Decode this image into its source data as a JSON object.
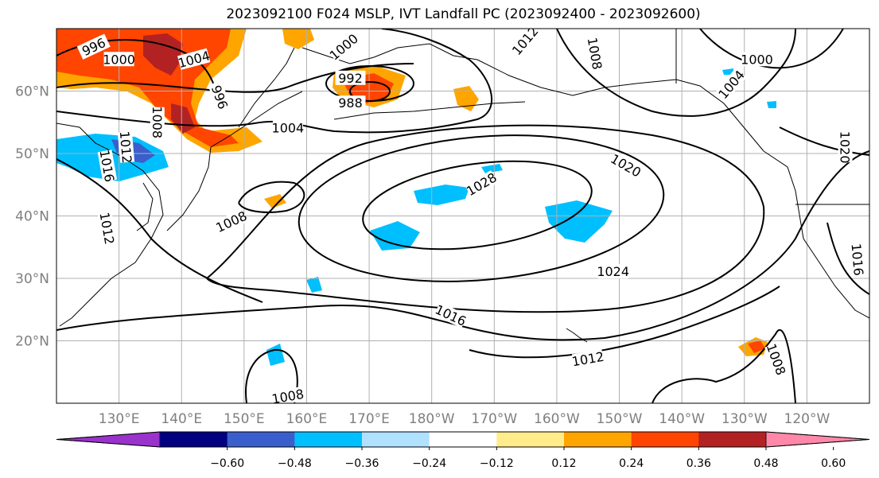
{
  "title": "2023092100 F024 MSLP, IVT Landfall PC (2023092400 - 2023092600)",
  "map": {
    "lon_range": [
      120,
      250
    ],
    "lat_range": [
      10,
      70
    ],
    "lon_ticks": [
      "130°E",
      "140°E",
      "150°E",
      "160°E",
      "170°E",
      "180°W",
      "170°W",
      "160°W",
      "150°W",
      "140°W",
      "130°W",
      "120°W"
    ],
    "lat_ticks": [
      "20°N",
      "30°N",
      "40°N",
      "50°N",
      "60°N"
    ],
    "grid": true
  },
  "contour_labels": [
    {
      "text": "996",
      "lon": 126,
      "lat": 67,
      "rot": -25
    },
    {
      "text": "1000",
      "lon": 130,
      "lat": 65,
      "rot": 0
    },
    {
      "text": "1004",
      "lon": 142,
      "lat": 65,
      "rot": -15
    },
    {
      "text": "1000",
      "lon": 166,
      "lat": 67,
      "rot": -40
    },
    {
      "text": "992",
      "lon": 167,
      "lat": 62,
      "rot": 0
    },
    {
      "text": "988",
      "lon": 167,
      "lat": 58,
      "rot": 0
    },
    {
      "text": "996",
      "lon": 146,
      "lat": 59,
      "rot": 70
    },
    {
      "text": "1008",
      "lon": 136,
      "lat": 55,
      "rot": 90
    },
    {
      "text": "1004",
      "lon": 157,
      "lat": 54,
      "rot": 0
    },
    {
      "text": "1016",
      "lon": 128,
      "lat": 48,
      "rot": 80
    },
    {
      "text": "1012",
      "lon": 131,
      "lat": 51,
      "rot": 85
    },
    {
      "text": "1012",
      "lon": 128,
      "lat": 38,
      "rot": 80
    },
    {
      "text": "1008",
      "lon": 148,
      "lat": 39,
      "rot": -25
    },
    {
      "text": "1028",
      "lon": 188,
      "lat": 45,
      "rot": -30
    },
    {
      "text": "1020",
      "lon": 211,
      "lat": 48,
      "rot": 30
    },
    {
      "text": "1024",
      "lon": 209,
      "lat": 31,
      "rot": 0
    },
    {
      "text": "1016",
      "lon": 183,
      "lat": 24,
      "rot": 25
    },
    {
      "text": "1012",
      "lon": 205,
      "lat": 17,
      "rot": -10
    },
    {
      "text": "1008",
      "lon": 157,
      "lat": 11,
      "rot": -10
    },
    {
      "text": "1008",
      "lon": 235,
      "lat": 17,
      "rot": 70
    },
    {
      "text": "1008",
      "lon": 206,
      "lat": 66,
      "rot": 80
    },
    {
      "text": "1000",
      "lon": 232,
      "lat": 65,
      "rot": 0
    },
    {
      "text": "1004",
      "lon": 228,
      "lat": 61,
      "rot": -50
    },
    {
      "text": "1020",
      "lon": 246,
      "lat": 51,
      "rot": 90
    },
    {
      "text": "1016",
      "lon": 248,
      "lat": 33,
      "rot": 85
    },
    {
      "text": "1012",
      "lon": 195,
      "lat": 68,
      "rot": -50
    }
  ],
  "colorbar": {
    "ticks": [
      "−0.60",
      "−0.48",
      "−0.36",
      "−0.24",
      "−0.12",
      "0.12",
      "0.24",
      "0.36",
      "0.48",
      "0.60"
    ],
    "colors": [
      "#9933cc",
      "#000080",
      "#3a5fcd",
      "#00bfff",
      "#b0e2ff",
      "#ffffff",
      "#ffec8b",
      "#ffa500",
      "#ff4500",
      "#b22222",
      "#ff88aa"
    ],
    "extend": "both"
  }
}
